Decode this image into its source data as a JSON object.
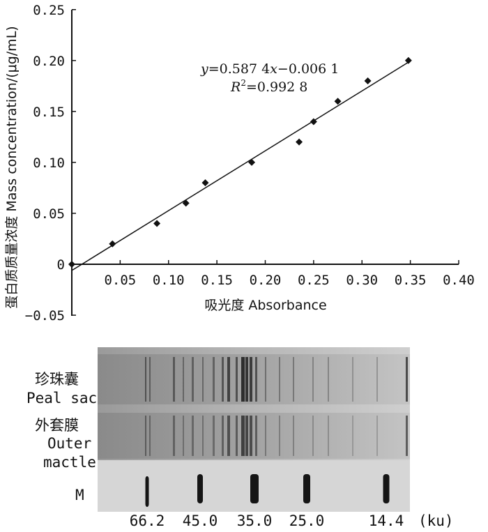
{
  "chart_data": {
    "type": "scatter",
    "xlabel": "吸光度 Absorbance",
    "ylabel": "蛋白质质量浓度 Mass concentration/(μg/mL)",
    "xlim": [
      0,
      0.4
    ],
    "ylim": [
      -0.05,
      0.25
    ],
    "xticks": [
      "0.05",
      "0.10",
      "0.15",
      "0.20",
      "0.25",
      "0.30",
      "0.35",
      "0.40"
    ],
    "yticks": [
      "0.25",
      "0.20",
      "0.15",
      "0.10",
      "0.05",
      "0",
      "−0.05"
    ],
    "x": [
      0.0,
      0.042,
      0.088,
      0.118,
      0.138,
      0.186,
      0.235,
      0.25,
      0.275,
      0.306,
      0.348
    ],
    "y": [
      0.0,
      0.02,
      0.04,
      0.06,
      0.08,
      0.1,
      0.12,
      0.14,
      0.16,
      0.18,
      0.2
    ],
    "fit": {
      "slope": 0.5874,
      "intercept": -0.0061
    },
    "equation": {
      "prefix_y": "y",
      "text1": "=0.587 4",
      "var_x": "x",
      "text2": "−0.006 1",
      "r_var": "R",
      "r_sup": "2",
      "r_val": "=0.992 8"
    },
    "grid": false
  },
  "gel": {
    "lane_labels": [
      {
        "zh": "珍珠囊",
        "en": [
          "Peal sac"
        ]
      },
      {
        "zh": "外套膜",
        "en": [
          "Outer",
          "mactle"
        ]
      },
      {
        "zh": "",
        "en": [
          "M"
        ]
      }
    ],
    "marker_kd": [
      "66.2",
      "45.0",
      "35.0",
      "25.0",
      "14.4"
    ],
    "unit": "(ku)"
  }
}
